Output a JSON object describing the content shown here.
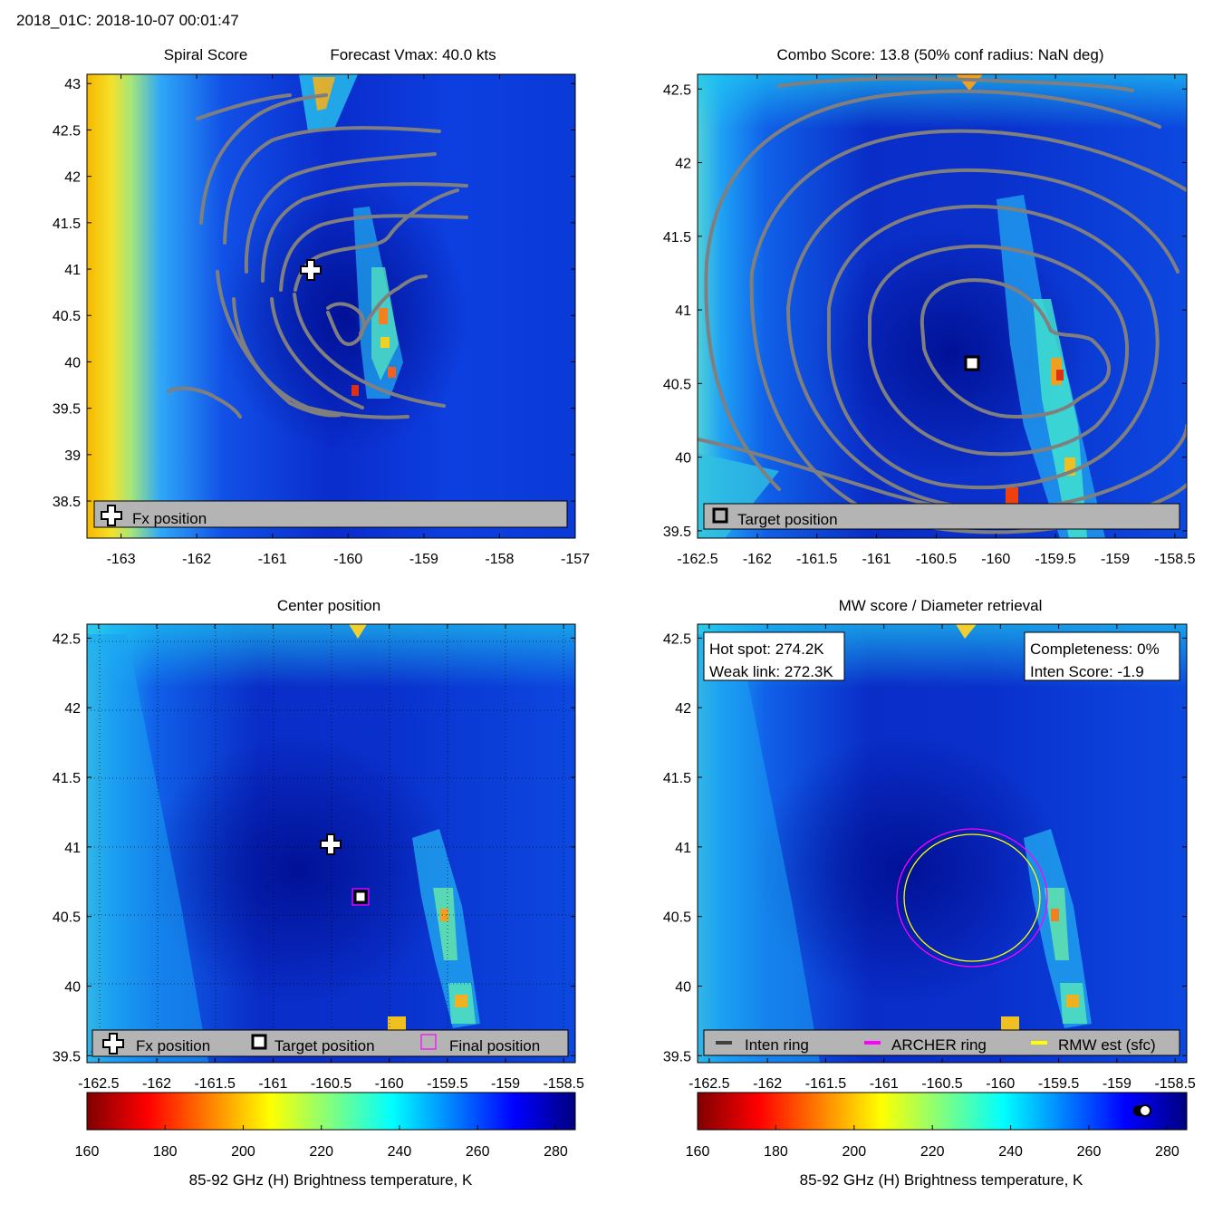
{
  "header": {
    "id_time": "2018_01C: 2018-10-07 00:01:47"
  },
  "colors": {
    "contour": "#7f7f7f",
    "legend_bg": "#b4b4b4",
    "archer_ring": "#ff00ff",
    "rmw_ring": "#ffff00",
    "inten_ring": "#404040",
    "final_marker": "#ff00ff"
  },
  "colormap": {
    "name": "jet",
    "range": [
      160,
      285
    ]
  },
  "panels": {
    "spiral": {
      "title_left": "Spiral Score",
      "title_right": "Forecast Vmax: 40.0 kts",
      "legend": {
        "fx": "Fx position"
      }
    },
    "combo": {
      "title": "Combo Score: 13.8  (50% conf radius: NaN deg)",
      "legend": {
        "target": "Target position"
      }
    },
    "center": {
      "title": "Center position",
      "legend": {
        "fx": "Fx position",
        "target": "Target position",
        "final": "Final position"
      }
    },
    "mw": {
      "title": "MW score / Diameter retrieval",
      "hot_spot": "Hot spot: 274.2K",
      "weak_link": "Weak link: 272.3K",
      "completeness": "Completeness: 0%",
      "inten_score": "Inten Score: -1.9",
      "legend": {
        "inten": "Inten ring",
        "archer": "ARCHER ring",
        "rmw": "RMW est (sfc)"
      }
    }
  },
  "colorbar": {
    "label": "85-92 GHz (H) Brightness temperature, K"
  },
  "chart_data": [
    {
      "type": "heatmap",
      "title": "Spiral Score",
      "subtitle": "Forecast Vmax: 40.0 kts",
      "xlim": [
        -163.45,
        -157.0
      ],
      "ylim": [
        38.1,
        43.1
      ],
      "xticks": [
        "-163",
        "-162",
        "-161",
        "-160",
        "-159",
        "-158",
        "-157"
      ],
      "yticks": [
        "38.5",
        "39",
        "39.5",
        "40",
        "40.5",
        "41",
        "41.5",
        "42",
        "42.5",
        "43"
      ],
      "fx_position": {
        "lon": -160.5,
        "lat": 41.0
      },
      "contours": "spiral score contours (gray)",
      "legend": [
        "Fx position"
      ],
      "legend_placement": "bottom"
    },
    {
      "type": "heatmap",
      "title": "Combo Score: 13.8  (50% conf radius: NaN deg)",
      "xlim": [
        -162.5,
        -158.4
      ],
      "ylim": [
        39.45,
        42.6
      ],
      "xticks": [
        "-162.5",
        "-162",
        "-161.5",
        "-161",
        "-160.5",
        "-160",
        "-159.5",
        "-159",
        "-158.5"
      ],
      "yticks": [
        "39.5",
        "40",
        "40.5",
        "41",
        "41.5",
        "42",
        "42.5"
      ],
      "target_position": {
        "lon": -160.2,
        "lat": 40.63
      },
      "legend": [
        "Target position"
      ],
      "legend_placement": "bottom"
    },
    {
      "type": "heatmap",
      "title": "Center position",
      "xlim": [
        -162.6,
        -158.4
      ],
      "ylim": [
        39.45,
        42.6
      ],
      "xticks": [
        "-162.5",
        "-162",
        "-161.5",
        "-161",
        "-160.5",
        "-160",
        "-159.5",
        "-159",
        "-158.5"
      ],
      "yticks": [
        "39.5",
        "40",
        "40.5",
        "41",
        "41.5",
        "42",
        "42.5"
      ],
      "grid": true,
      "fx_position": {
        "lon": -160.5,
        "lat": 41.02
      },
      "target_position": {
        "lon": -160.25,
        "lat": 40.63
      },
      "final_position": {
        "lon": -160.25,
        "lat": 40.63
      },
      "legend": [
        "Fx position",
        "Target position",
        "Final position"
      ],
      "legend_placement": "bottom"
    },
    {
      "type": "heatmap",
      "title": "MW score / Diameter retrieval",
      "xlim": [
        -162.6,
        -158.4
      ],
      "ylim": [
        39.45,
        42.6
      ],
      "xticks": [
        "-162.5",
        "-162",
        "-161.5",
        "-161",
        "-160.5",
        "-160",
        "-159.5",
        "-159",
        "-158.5"
      ],
      "yticks": [
        "39.5",
        "40",
        "40.5",
        "41",
        "41.5",
        "42",
        "42.5"
      ],
      "archer_ring": {
        "center_lon": -160.25,
        "center_lat": 40.63,
        "radius_deg": 0.5
      },
      "rmw_ring": {
        "center_lon": -160.25,
        "center_lat": 40.63,
        "radius_deg": 0.46
      },
      "legend": [
        "Inten ring",
        "ARCHER ring",
        "RMW est (sfc)"
      ],
      "legend_placement": "bottom"
    },
    {
      "type": "colorbar",
      "ticks": [
        160,
        180,
        200,
        220,
        240,
        260,
        280
      ],
      "range": [
        160,
        285
      ],
      "label": "85-92 GHz (H) Brightness temperature, K",
      "mw_score_marker": 273
    }
  ]
}
